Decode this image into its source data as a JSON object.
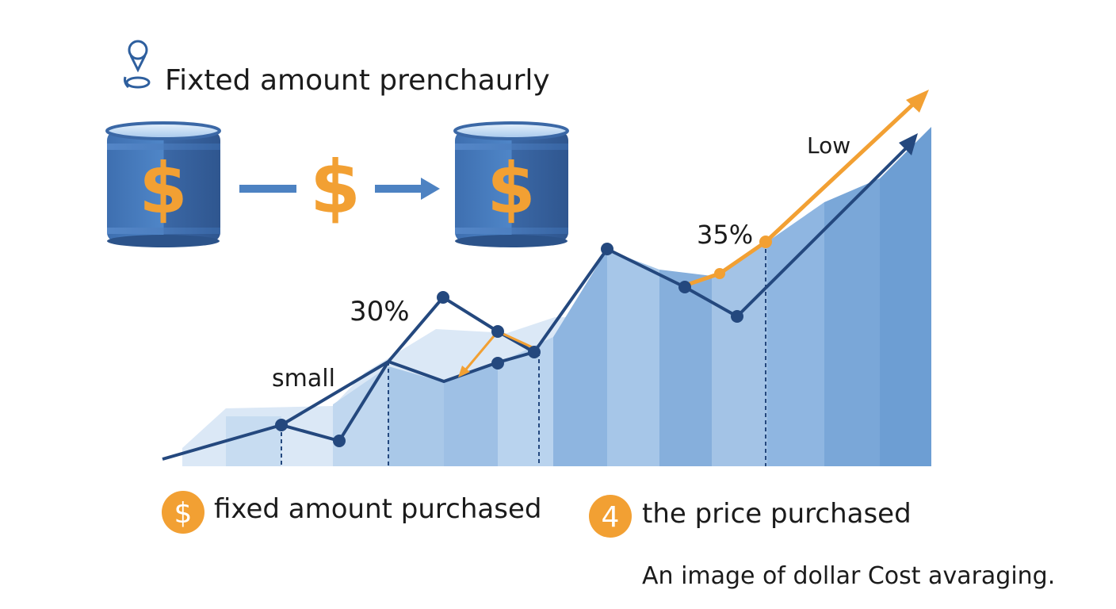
{
  "header": {
    "icon": "pin-icon",
    "title": "Fixted amount prenchaurly"
  },
  "flow": {
    "left_can_symbol": "$",
    "middle_symbol": "$",
    "right_can_symbol": "$"
  },
  "chart": {
    "labels": {
      "small": "small",
      "pct30": "30%",
      "pct35": "35%",
      "low": "Low"
    }
  },
  "legend": [
    {
      "badge": "$",
      "label": "fixed amount purchased"
    },
    {
      "badge": "4",
      "label": "the price purchased"
    }
  ],
  "caption": "An image of dollar Cost avaraging.",
  "colors": {
    "blue_dark": "#24487e",
    "blue_mid": "#4a7fc0",
    "blue_light": "#a9c7e7",
    "orange": "#f2a033"
  }
}
